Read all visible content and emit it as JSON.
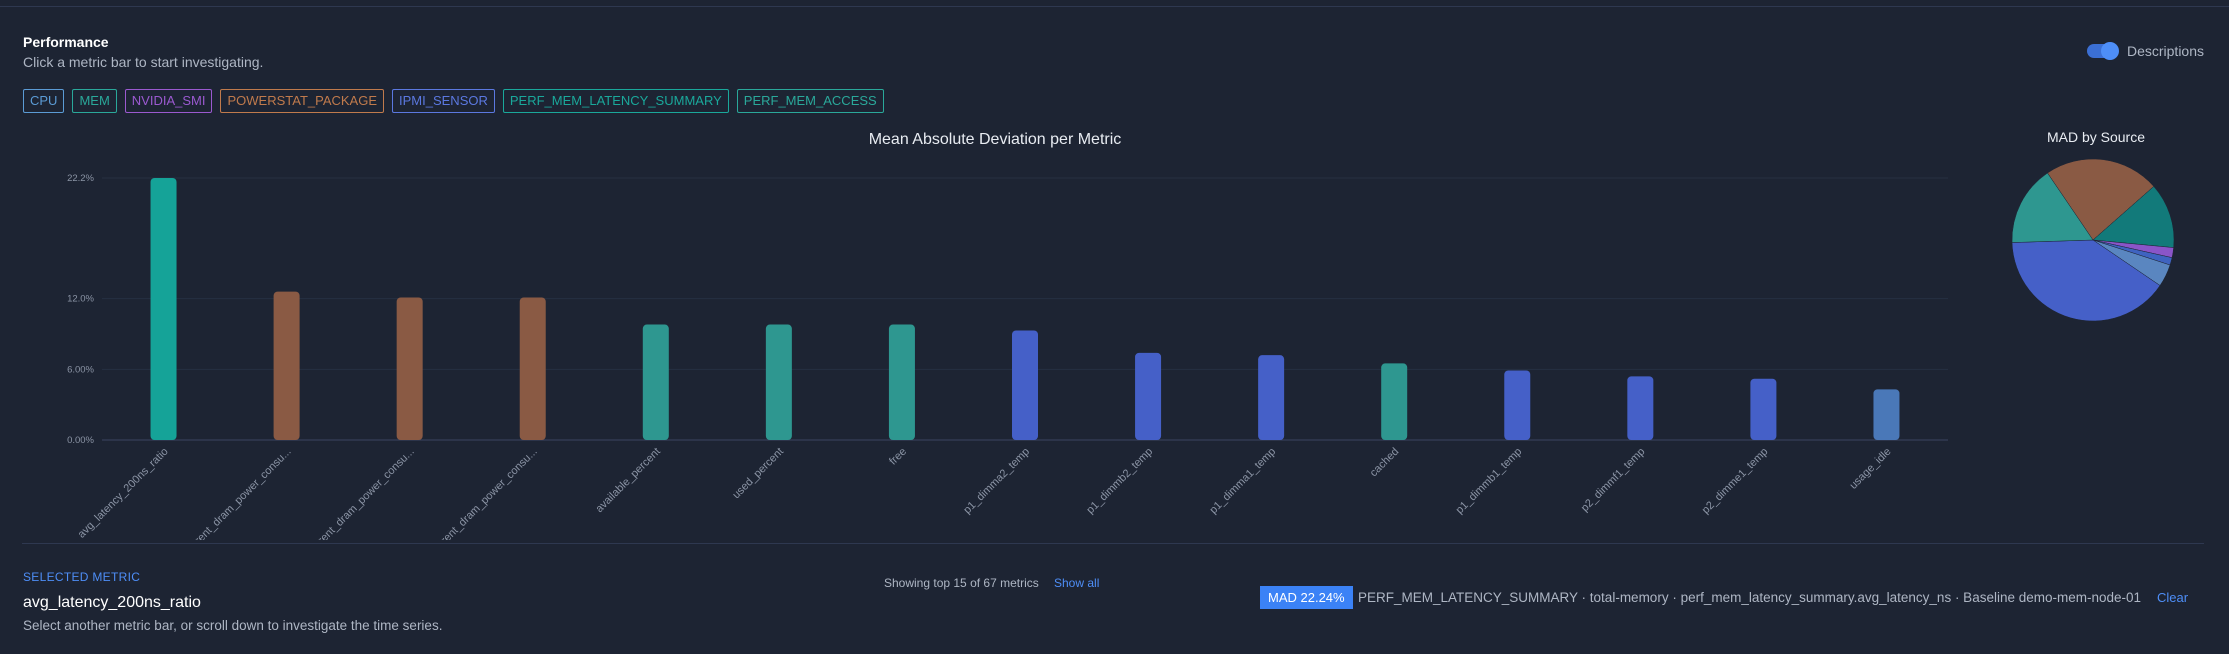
{
  "panel": {
    "title": "Performance",
    "subtitle": "Click a metric bar to start investigating."
  },
  "toggle": {
    "label": "Descriptions",
    "on": true
  },
  "sources": [
    {
      "label": "CPU",
      "color": "#5b9bd5"
    },
    {
      "label": "MEM",
      "color": "#2aa89a"
    },
    {
      "label": "NVIDIA_SMI",
      "color": "#9b59d0"
    },
    {
      "label": "POWERSTAT_PACKAGE",
      "color": "#c07a4c"
    },
    {
      "label": "IPMI_SENSOR",
      "color": "#5b78e0"
    },
    {
      "label": "PERF_MEM_LATENCY_SUMMARY",
      "color": "#1aa89b"
    },
    {
      "label": "PERF_MEM_ACCESS",
      "color": "#2aa89a"
    }
  ],
  "chart_data": [
    {
      "type": "bar",
      "title": "Mean Absolute Deviation per Metric",
      "categories": [
        "avg_latency_200ns_ratio",
        "current_dram_power_consu...",
        "current_dram_power_consu...",
        "current_dram_power_consu...",
        "available_percent",
        "used_percent",
        "free",
        "p1_dimma2_temp",
        "p1_dimmb2_temp",
        "p1_dimma1_temp",
        "cached",
        "p1_dimmb1_temp",
        "p2_dimmf1_temp",
        "p2_dimme1_temp",
        "usage_idle"
      ],
      "values": [
        22.24,
        12.6,
        12.1,
        12.1,
        9.8,
        9.8,
        9.8,
        9.3,
        7.4,
        7.2,
        6.5,
        5.9,
        5.4,
        5.2,
        4.3
      ],
      "bar_colors": [
        "#15a398",
        "#8a5a44",
        "#8a5a44",
        "#8a5a44",
        "#2e9790",
        "#2e9790",
        "#2e9790",
        "#4560c8",
        "#4560c8",
        "#4560c8",
        "#2e9790",
        "#4560c8",
        "#4560c8",
        "#4560c8",
        "#4a78b8"
      ],
      "ytick_labels": [
        "0.00%",
        "6.00%",
        "12.0%",
        "22.2%"
      ],
      "yticks": [
        0,
        6,
        12,
        22.24
      ],
      "ylim": [
        0,
        22.24
      ]
    },
    {
      "type": "pie",
      "title": "MAD by Source",
      "slices": [
        {
          "value": 23,
          "color": "#8a5a44"
        },
        {
          "value": 13,
          "color": "#127a7a"
        },
        {
          "value": 2,
          "color": "#8a55c8"
        },
        {
          "value": 1.5,
          "color": "#3f63c0"
        },
        {
          "value": 4.5,
          "color": "#5a86c0"
        },
        {
          "value": 40,
          "color": "#4560c8"
        },
        {
          "value": 16,
          "color": "#2e9790"
        }
      ]
    }
  ],
  "summary": {
    "showing": "Showing top 15 of 67 metrics",
    "show_all": "Show all"
  },
  "selected": {
    "section_label": "SELECTED METRIC",
    "name": "avg_latency_200ns_ratio",
    "hint": "Select another metric bar, or scroll down to investigate the time series.",
    "mad_badge": "MAD 22.24%",
    "description": "PERF_MEM_LATENCY_SUMMARY · total-memory · perf_mem_latency_summary.avg_latency_ns · Baseline demo-mem-node-01",
    "clear": "Clear"
  }
}
